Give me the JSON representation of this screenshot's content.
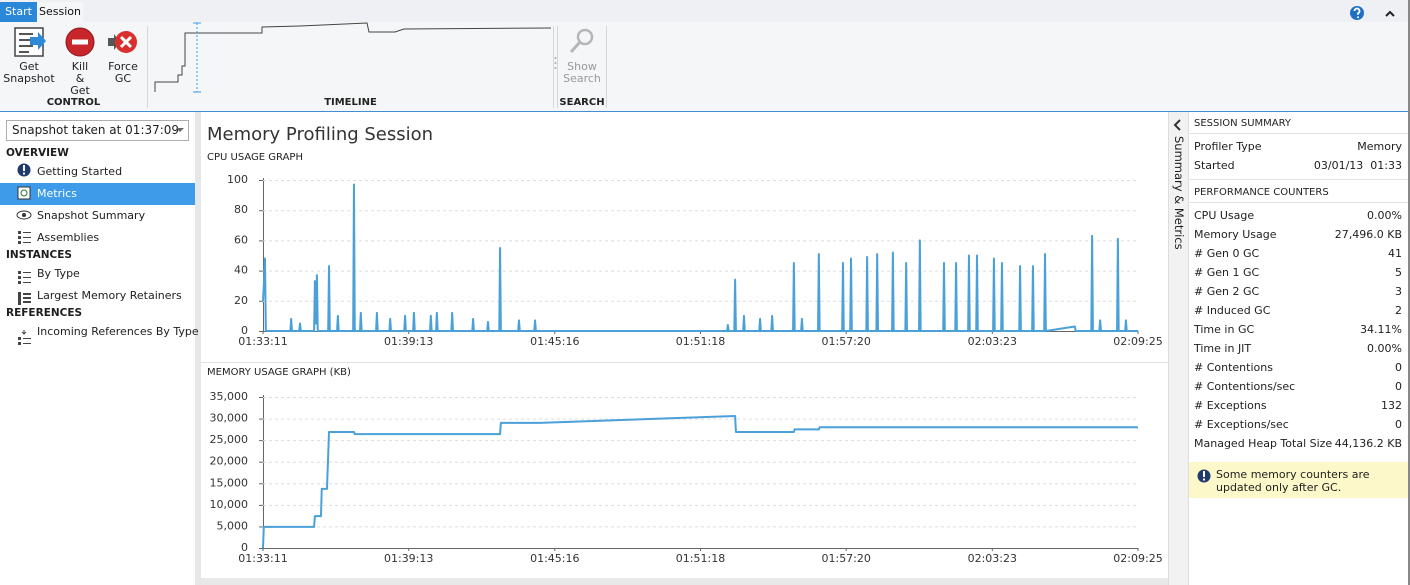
{
  "ribbon": {
    "tabs": [
      "Start",
      "Session"
    ],
    "groups": [
      {
        "label": "CONTROL",
        "buttons": [
          "Get Snapshot",
          "Kill & Get",
          "Force GC"
        ]
      },
      {
        "label": "TIMELINE"
      },
      {
        "label": "SEARCH",
        "buttons": [
          "Show Search"
        ]
      }
    ]
  },
  "left_panel": {
    "snapshot": "Snapshot taken at 01:37:09",
    "sections": [
      {
        "title": "OVERVIEW",
        "items": [
          "Getting Started",
          "Metrics",
          "Snapshot Summary",
          "Assemblies"
        ]
      },
      {
        "title": "INSTANCES",
        "items": [
          "By Type",
          "Largest Memory Retainers"
        ]
      },
      {
        "title": "REFERENCES",
        "items": [
          "Incoming References By Type"
        ]
      }
    ]
  },
  "main_title": "Memory Profiling Session",
  "chart_data": [
    {
      "type": "line",
      "title": "CPU USAGE GRAPH",
      "color": "#4aa0d8",
      "x": [
        "01:33:11",
        "01:33:13",
        "01:33:16",
        "01:33:18",
        "01:34:19",
        "01:34:21",
        "01:34:23",
        "01:34:41",
        "01:34:43",
        "01:34:45",
        "01:35:18",
        "01:35:20",
        "01:35:22",
        "01:35:25",
        "01:35:27",
        "01:35:53",
        "01:35:55",
        "01:35:57",
        "01:36:15",
        "01:36:17",
        "01:36:19",
        "01:36:55",
        "01:36:57",
        "01:36:59",
        "01:37:12",
        "01:37:14",
        "01:37:16",
        "01:37:52",
        "01:37:54",
        "01:37:56",
        "01:38:25",
        "01:38:27",
        "01:38:29",
        "01:39:02",
        "01:39:04",
        "01:39:06",
        "01:39:24",
        "01:39:26",
        "01:39:28",
        "01:40:06",
        "01:40:08",
        "01:40:10",
        "01:40:21",
        "01:40:23",
        "01:40:25",
        "01:40:59",
        "01:41:01",
        "01:41:03",
        "01:41:51",
        "01:41:53",
        "01:41:55",
        "01:42:28",
        "01:42:30",
        "01:42:32",
        "01:42:58",
        "01:43:00",
        "01:43:02",
        "01:43:45",
        "01:43:47",
        "01:43:49",
        "01:44:25",
        "01:44:27",
        "01:44:29",
        "01:52:24",
        "01:52:26",
        "01:52:28",
        "01:52:42",
        "01:52:44",
        "01:52:46",
        "01:53:04",
        "01:53:06",
        "01:53:08",
        "01:53:44",
        "01:53:46",
        "01:53:48",
        "01:54:14",
        "01:54:16",
        "01:54:18",
        "01:55:08",
        "01:55:10",
        "01:55:12",
        "01:55:28",
        "01:55:30",
        "01:55:32",
        "01:56:10",
        "01:56:12",
        "01:56:14",
        "01:57:10",
        "01:57:12",
        "01:57:14",
        "01:57:30",
        "01:57:32",
        "01:57:34",
        "01:58:10",
        "01:58:12",
        "01:58:14",
        "01:58:35",
        "01:58:37",
        "01:58:39",
        "01:59:14",
        "01:59:16",
        "01:59:18",
        "01:59:47",
        "01:59:49",
        "01:59:51",
        "02:00:21",
        "02:00:23",
        "02:00:25",
        "02:01:21",
        "02:01:23",
        "02:01:25",
        "02:01:51",
        "02:01:53",
        "02:01:55",
        "02:02:23",
        "02:02:25",
        "02:02:27",
        "02:02:43",
        "02:02:45",
        "02:02:47",
        "02:03:25",
        "02:03:27",
        "02:03:29",
        "02:03:45",
        "02:03:47",
        "02:03:49",
        "02:04:30",
        "02:04:32",
        "02:04:34",
        "02:05:02",
        "02:05:04",
        "02:05:06",
        "02:05:32",
        "02:05:34",
        "02:05:36",
        "02:06:48",
        "02:06:50",
        "02:07:29",
        "02:07:31",
        "02:07:33",
        "02:07:49",
        "02:07:51",
        "02:07:53",
        "02:08:33",
        "02:08:35",
        "02:08:37",
        "02:08:53",
        "02:08:55",
        "02:08:57",
        "02:09:25"
      ],
      "values": [
        20,
        30,
        48,
        0,
        0,
        8,
        0,
        0,
        5,
        0,
        0,
        33,
        5,
        37,
        0,
        0,
        43,
        0,
        0,
        10,
        0,
        0,
        97,
        0,
        0,
        12,
        0,
        0,
        12,
        0,
        0,
        8,
        0,
        0,
        10,
        0,
        0,
        12,
        0,
        0,
        10,
        0,
        0,
        12,
        0,
        0,
        12,
        0,
        0,
        8,
        0,
        0,
        6,
        0,
        0,
        55,
        0,
        0,
        7,
        0,
        0,
        7,
        0,
        0,
        4,
        0,
        0,
        34,
        0,
        0,
        10,
        0,
        0,
        8,
        0,
        0,
        10,
        0,
        0,
        45,
        0,
        0,
        8,
        0,
        0,
        51,
        0,
        0,
        45,
        0,
        0,
        48,
        0,
        0,
        49,
        0,
        0,
        51,
        0,
        0,
        52,
        0,
        0,
        45,
        0,
        0,
        60,
        0,
        0,
        45,
        0,
        0,
        45,
        0,
        0,
        50,
        0,
        0,
        50,
        0,
        0,
        48,
        0,
        0,
        45,
        0,
        0,
        43,
        0,
        0,
        43,
        0,
        0,
        51,
        0,
        3,
        0,
        0,
        63,
        0,
        0,
        7,
        0,
        0,
        61,
        0,
        0,
        7,
        0,
        0
      ],
      "xlim": [
        "01:33:11",
        "02:09:25"
      ],
      "xticks": [
        "01:33:11",
        "01:39:13",
        "01:45:16",
        "01:51:18",
        "01:57:20",
        "02:03:23",
        "02:09:25"
      ],
      "ylim": [
        0,
        100
      ],
      "yticks": [
        0,
        20,
        40,
        60,
        80,
        100
      ],
      "grid": true
    },
    {
      "type": "line",
      "title": "MEMORY USAGE GRAPH (KB)",
      "color": "#4aa0d8",
      "x": [
        "01:33:11",
        "01:33:13",
        "01:35:18",
        "01:35:20",
        "01:35:35",
        "01:35:37",
        "01:35:50",
        "01:35:55",
        "01:36:57",
        "01:36:59",
        "01:43:00",
        "01:43:02",
        "01:44:39",
        "01:52:44",
        "01:52:46",
        "01:55:10",
        "01:55:12",
        "01:56:12",
        "01:56:14",
        "02:09:25"
      ],
      "values": [
        0,
        4900,
        4900,
        7400,
        7400,
        13700,
        13700,
        26900,
        26900,
        26400,
        26400,
        29000,
        29000,
        30600,
        26900,
        26900,
        27500,
        27500,
        28000,
        28000
      ],
      "xlim": [
        "01:33:11",
        "02:09:25"
      ],
      "xticks": [
        "01:33:11",
        "01:39:13",
        "01:45:16",
        "01:51:18",
        "01:57:20",
        "02:03:23",
        "02:09:25"
      ],
      "ylim": [
        0,
        35000
      ],
      "yticks": [
        0,
        {
          "value": 5000,
          "label": "5,000"
        },
        {
          "value": 10000,
          "label": "10,000"
        },
        {
          "value": 15000,
          "label": "15,000"
        },
        {
          "value": 20000,
          "label": "20,000"
        },
        {
          "value": 25000,
          "label": "25,000"
        },
        {
          "value": 30000,
          "label": "30,000"
        },
        {
          "value": 35000,
          "label": "35,000"
        }
      ],
      "grid": true
    }
  ],
  "right_panel": {
    "collapse_label": "Summary & Metrics",
    "sections": [
      {
        "title": "SESSION SUMMARY",
        "rows": [
          [
            "Profiler Type",
            "Memory"
          ],
          [
            "Started",
            "03/01/13  01:33"
          ]
        ]
      },
      {
        "title": "PERFORMANCE COUNTERS",
        "rows": [
          [
            "CPU Usage",
            "0.00%"
          ],
          [
            "Memory Usage",
            "27,496.0 KB"
          ],
          [
            "# Gen 0 GC",
            "41"
          ],
          [
            "# Gen 1 GC",
            "5"
          ],
          [
            "# Gen 2 GC",
            "3"
          ],
          [
            "# Induced GC",
            "2"
          ],
          [
            "Time in GC",
            "34.11%"
          ],
          [
            "Time in JIT",
            "0.00%"
          ],
          [
            "# Contentions",
            "0"
          ],
          [
            "# Contentions/sec",
            "0"
          ],
          [
            "# Exceptions",
            "132"
          ],
          [
            "# Exceptions/sec",
            "0"
          ],
          [
            "Managed Heap Total Size",
            "44,136.2 KB"
          ]
        ]
      }
    ],
    "note": "Some memory counters are updated only after GC."
  }
}
